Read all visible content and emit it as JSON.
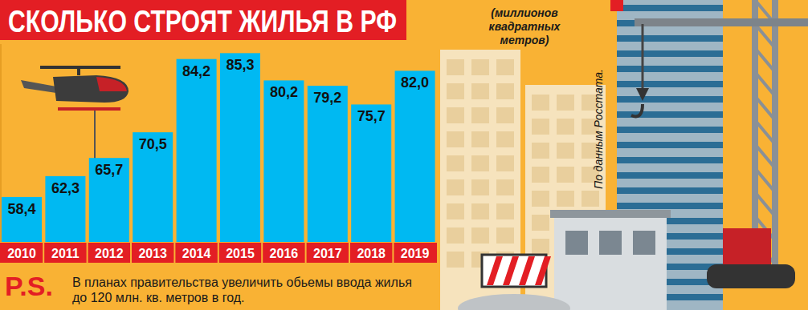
{
  "chart_data": {
    "type": "bar",
    "title": "СКОЛЬКО СТРОЯТ ЖИЛЬЯ В РФ",
    "subtitle": "(миллионов квадратных метров)",
    "categories": [
      "2010",
      "2011",
      "2012",
      "2013",
      "2014",
      "2015",
      "2016",
      "2017",
      "2018",
      "2019"
    ],
    "values": [
      58.4,
      62.3,
      65.7,
      70.5,
      84.2,
      85.3,
      80.2,
      79.2,
      75.7,
      82.0
    ],
    "value_labels": [
      "58,4",
      "62,3",
      "65,7",
      "70,5",
      "84,2",
      "85,3",
      "80,2",
      "79,2",
      "75,7",
      "82,0"
    ],
    "color": "#00b9f2",
    "ylim": [
      50,
      87
    ],
    "data_labels": true,
    "tick_labels": "x",
    "source": "По данным Росстата.",
    "annotations": [
      "P.S.",
      "В планах правительства увеличить обьемы ввода жилья до 120 млн. кв. метров в год."
    ]
  }
}
